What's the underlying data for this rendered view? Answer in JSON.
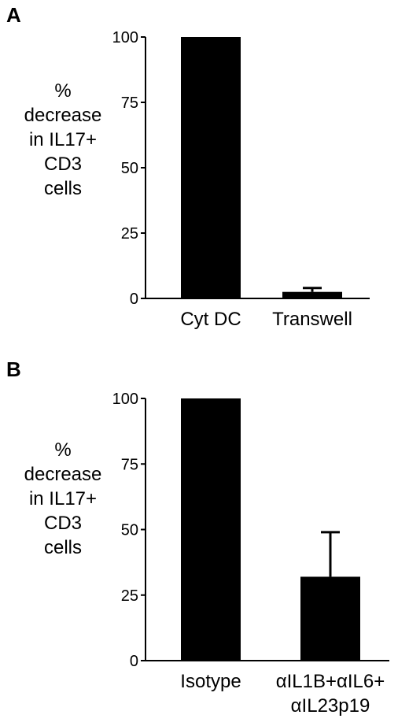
{
  "chart_data": [
    {
      "panel": "A",
      "type": "bar",
      "categories": [
        "Cyt DC",
        "Transwell"
      ],
      "values": [
        100,
        2.5
      ],
      "errors": [
        0,
        1.5
      ],
      "ylabel_lines": [
        "%",
        "decrease",
        "in IL17+",
        "CD3",
        "cells"
      ],
      "yticks": [
        0,
        25,
        50,
        75,
        100
      ],
      "ylim": [
        0,
        100
      ],
      "bar_color": "#000000"
    },
    {
      "panel": "B",
      "type": "bar",
      "categories": [
        "Isotype",
        "αIL1B+αIL6+\nαIL23p19"
      ],
      "values": [
        100,
        32
      ],
      "errors": [
        0,
        17
      ],
      "ylabel_lines": [
        "%",
        "decrease",
        "in IL17+",
        "CD3",
        "cells"
      ],
      "yticks": [
        0,
        25,
        50,
        75,
        100
      ],
      "ylim": [
        0,
        100
      ],
      "bar_color": "#000000"
    }
  ]
}
